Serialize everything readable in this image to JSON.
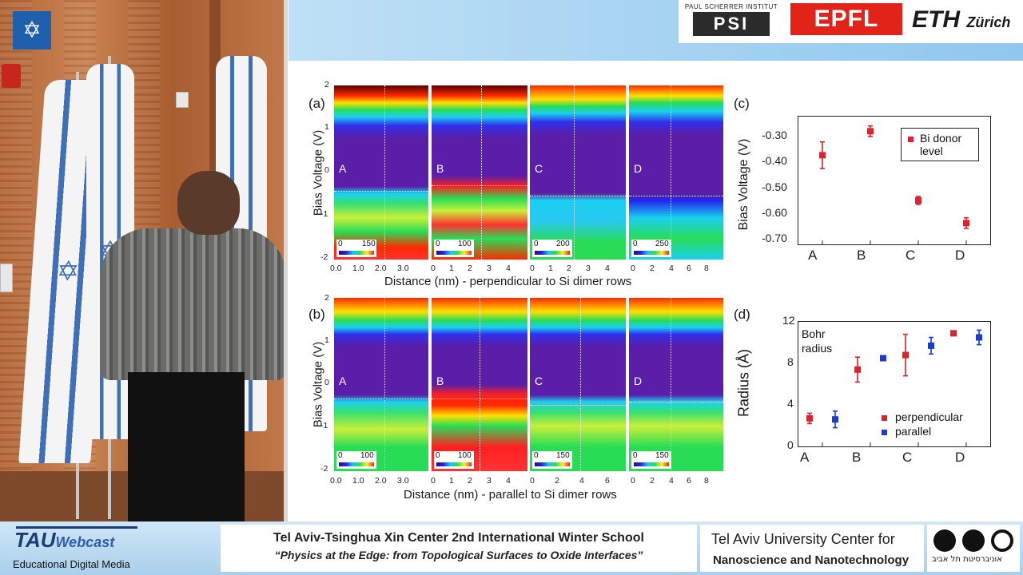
{
  "footer": {
    "tau_logo": "TAU",
    "tau_webcast": "Webcast",
    "tau_subtitle": "Educational Digital Media",
    "event_title": "Tel Aviv-Tsinghua Xin Center 2nd International Winter School",
    "event_subtitle": "“Physics at the Edge: from Topological Surfaces to Oxide Interfaces”",
    "center_line1": "Tel Aviv University Center for",
    "center_line2": "Nanoscience and Nanotechnology",
    "university_hebrew": "אוניברסיטת תל אביב"
  },
  "logos": {
    "psi_top": "PAUL SCHERRER INSTITUT",
    "psi": "PSI",
    "epfl": "EPFL",
    "eth": "ETH",
    "eth_city": "Zürich"
  },
  "panel_a": {
    "label": "(a)",
    "ylabel": "Bias Voltage (V)",
    "yticks": [
      "2",
      "1",
      "0",
      "-1",
      "-2"
    ],
    "xlabel": "Distance (nm) - perpendicular to Si dimer rows",
    "maps": [
      {
        "letter": "A",
        "cbar": [
          "0",
          "150"
        ],
        "xticks": [
          "0.0",
          "1.0",
          "2.0",
          "3.0"
        ]
      },
      {
        "letter": "B",
        "cbar": [
          "0",
          "100"
        ],
        "xticks": [
          "0",
          "1",
          "2",
          "3",
          "4"
        ]
      },
      {
        "letter": "C",
        "cbar": [
          "0",
          "200"
        ],
        "xticks": [
          "0",
          "1",
          "2",
          "3",
          "4"
        ]
      },
      {
        "letter": "D",
        "cbar": [
          "0",
          "250"
        ],
        "xticks": [
          "0",
          "2",
          "4",
          "6",
          "8"
        ]
      }
    ]
  },
  "panel_b": {
    "label": "(b)",
    "ylabel": "Bias Voltage (V)",
    "yticks": [
      "2",
      "1",
      "0",
      "-1",
      "-2"
    ],
    "xlabel": "Distance (nm) - parallel to Si dimer rows",
    "maps": [
      {
        "letter": "A",
        "cbar": [
          "0",
          "100"
        ],
        "xticks": [
          "0.0",
          "1.0",
          "2.0",
          "3.0"
        ]
      },
      {
        "letter": "B",
        "cbar": [
          "0",
          "100"
        ],
        "xticks": [
          "0",
          "1",
          "2",
          "3",
          "4"
        ]
      },
      {
        "letter": "C",
        "cbar": [
          "0",
          "150"
        ],
        "xticks": [
          "0",
          "2",
          "4",
          "6"
        ]
      },
      {
        "letter": "D",
        "cbar": [
          "0",
          "150"
        ],
        "xticks": [
          "0",
          "2",
          "4",
          "6",
          "8"
        ]
      }
    ]
  },
  "chart_data": [
    {
      "type": "scatter",
      "panel": "(c)",
      "ylabel": "Bias Voltage (V)",
      "categories": [
        "A",
        "B",
        "C",
        "D"
      ],
      "yticks": [
        "-0.30",
        "-0.40",
        "-0.50",
        "-0.60",
        "-0.70"
      ],
      "ylim": [
        -0.72,
        -0.24
      ],
      "series": [
        {
          "name": "Bi donor level",
          "color": "#e0202a",
          "values": [
            -0.385,
            -0.295,
            -0.555,
            -0.64
          ],
          "errors": [
            0.05,
            0.02,
            0.015,
            0.02
          ]
        }
      ],
      "legend": [
        "Bi donor",
        "level"
      ],
      "legend_position": "top-right"
    },
    {
      "type": "scatter",
      "panel": "(d)",
      "ylabel": "Radius (Å)",
      "categories": [
        "A",
        "B",
        "C",
        "D"
      ],
      "yticks": [
        "12",
        "8",
        "4",
        "0"
      ],
      "ylim": [
        0,
        12
      ],
      "annotation": [
        "Bohr",
        "radius"
      ],
      "series": [
        {
          "name": "perpendicular",
          "color": "#e0202a",
          "values": [
            2.7,
            7.4,
            8.8,
            10.9
          ],
          "errors": [
            0.5,
            1.2,
            2.0,
            0.2
          ]
        },
        {
          "name": "parallel",
          "color": "#1a3ad8",
          "values": [
            2.6,
            8.5,
            9.7,
            10.5
          ],
          "errors": [
            0.8,
            0.2,
            0.8,
            0.7
          ]
        }
      ],
      "legend_position": "bottom-right"
    }
  ]
}
